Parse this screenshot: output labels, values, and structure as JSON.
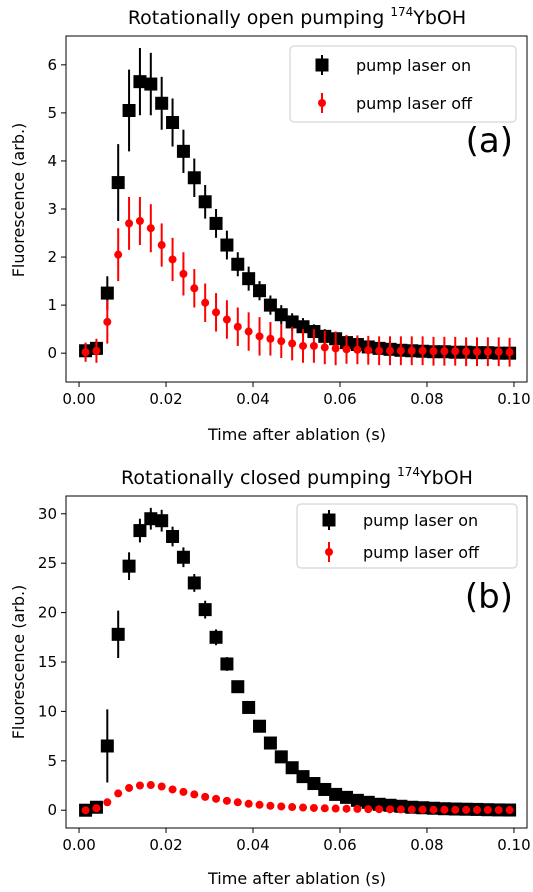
{
  "chart_data": [
    {
      "type": "scatter",
      "title": "Rotationally open pumping ",
      "title_sup": "174",
      "title_suffix": "YbOH",
      "xlabel": "Time after ablation (s)",
      "ylabel": "Fluorescence (arb.)",
      "panel_label": "(a)",
      "xlim": [
        -0.003,
        0.103
      ],
      "ylim": [
        -0.6,
        6.6
      ],
      "xticks": [
        "0.00",
        "0.02",
        "0.04",
        "0.06",
        "0.08",
        "0.10"
      ],
      "xtick_values": [
        0,
        0.02,
        0.04,
        0.06,
        0.08,
        0.1
      ],
      "yticks": [
        "0",
        "1",
        "2",
        "3",
        "4",
        "5",
        "6"
      ],
      "ytick_values": [
        0,
        1,
        2,
        3,
        4,
        5,
        6
      ],
      "legend_position": "top-right",
      "grid": false,
      "series": [
        {
          "name": "pump laser on",
          "color": "#000000",
          "marker": "square",
          "x": [
            0.0015,
            0.004,
            0.0065,
            0.009,
            0.0115,
            0.014,
            0.0165,
            0.019,
            0.0215,
            0.024,
            0.0265,
            0.029,
            0.0315,
            0.034,
            0.0365,
            0.039,
            0.0415,
            0.044,
            0.0465,
            0.049,
            0.0515,
            0.054,
            0.0565,
            0.059,
            0.0615,
            0.064,
            0.0665,
            0.069,
            0.0715,
            0.074,
            0.0765,
            0.079,
            0.0815,
            0.084,
            0.0865,
            0.089,
            0.0915,
            0.094,
            0.0965,
            0.099
          ],
          "y": [
            0.05,
            0.1,
            1.25,
            3.55,
            5.05,
            5.65,
            5.6,
            5.2,
            4.8,
            4.2,
            3.65,
            3.15,
            2.7,
            2.25,
            1.85,
            1.55,
            1.3,
            1.0,
            0.8,
            0.65,
            0.55,
            0.45,
            0.35,
            0.3,
            0.22,
            0.18,
            0.13,
            0.1,
            0.08,
            0.06,
            0.05,
            0.04,
            0.03,
            0.03,
            0.02,
            0.02,
            0.01,
            0.01,
            0.0,
            0.0
          ],
          "err": [
            0.15,
            0.15,
            0.35,
            0.8,
            0.85,
            0.7,
            0.65,
            0.55,
            0.5,
            0.45,
            0.4,
            0.35,
            0.3,
            0.3,
            0.25,
            0.25,
            0.2,
            0.2,
            0.2,
            0.18,
            0.18,
            0.15,
            0.15,
            0.15,
            0.15,
            0.15,
            0.12,
            0.12,
            0.12,
            0.12,
            0.12,
            0.12,
            0.12,
            0.12,
            0.12,
            0.12,
            0.12,
            0.1,
            0.1,
            0.1
          ]
        },
        {
          "name": "pump laser off",
          "color": "#ff0000",
          "marker": "circle",
          "x": [
            0.0015,
            0.004,
            0.0065,
            0.009,
            0.0115,
            0.014,
            0.0165,
            0.019,
            0.0215,
            0.024,
            0.0265,
            0.029,
            0.0315,
            0.034,
            0.0365,
            0.039,
            0.0415,
            0.044,
            0.0465,
            0.049,
            0.0515,
            0.054,
            0.0565,
            0.059,
            0.0615,
            0.064,
            0.0665,
            0.069,
            0.0715,
            0.074,
            0.0765,
            0.079,
            0.0815,
            0.084,
            0.0865,
            0.089,
            0.0915,
            0.094,
            0.0965,
            0.099
          ],
          "y": [
            0.02,
            0.05,
            0.65,
            2.05,
            2.7,
            2.75,
            2.6,
            2.25,
            1.95,
            1.65,
            1.35,
            1.05,
            0.85,
            0.7,
            0.55,
            0.45,
            0.35,
            0.3,
            0.25,
            0.2,
            0.15,
            0.15,
            0.12,
            0.1,
            0.08,
            0.07,
            0.06,
            0.05,
            0.05,
            0.05,
            0.05,
            0.05,
            0.04,
            0.04,
            0.04,
            0.03,
            0.03,
            0.03,
            0.03,
            0.02
          ],
          "err": [
            0.2,
            0.25,
            0.45,
            0.55,
            0.55,
            0.5,
            0.5,
            0.45,
            0.45,
            0.45,
            0.4,
            0.4,
            0.4,
            0.4,
            0.4,
            0.4,
            0.4,
            0.35,
            0.35,
            0.35,
            0.35,
            0.35,
            0.35,
            0.35,
            0.3,
            0.3,
            0.3,
            0.3,
            0.3,
            0.3,
            0.3,
            0.3,
            0.3,
            0.3,
            0.3,
            0.3,
            0.3,
            0.3,
            0.3,
            0.3
          ]
        }
      ]
    },
    {
      "type": "scatter",
      "title": "Rotationally closed pumping ",
      "title_sup": "174",
      "title_suffix": "YbOH",
      "xlabel": "Time after ablation (s)",
      "ylabel": "Fluorescence (arb.)",
      "panel_label": "(b)",
      "xlim": [
        -0.003,
        0.103
      ],
      "ylim": [
        -1.8,
        31.8
      ],
      "xticks": [
        "0.00",
        "0.02",
        "0.04",
        "0.06",
        "0.08",
        "0.10"
      ],
      "xtick_values": [
        0,
        0.02,
        0.04,
        0.06,
        0.08,
        0.1
      ],
      "yticks": [
        "0",
        "5",
        "10",
        "15",
        "20",
        "25",
        "30"
      ],
      "ytick_values": [
        0,
        5,
        10,
        15,
        20,
        25,
        30
      ],
      "legend_position": "top-right",
      "grid": false,
      "series": [
        {
          "name": "pump laser on",
          "color": "#000000",
          "marker": "square",
          "x": [
            0.0015,
            0.004,
            0.0065,
            0.009,
            0.0115,
            0.014,
            0.0165,
            0.019,
            0.0215,
            0.024,
            0.0265,
            0.029,
            0.0315,
            0.034,
            0.0365,
            0.039,
            0.0415,
            0.044,
            0.0465,
            0.049,
            0.0515,
            0.054,
            0.0565,
            0.059,
            0.0615,
            0.064,
            0.0665,
            0.069,
            0.0715,
            0.074,
            0.0765,
            0.079,
            0.0815,
            0.084,
            0.0865,
            0.089,
            0.0915,
            0.094,
            0.0965,
            0.099
          ],
          "y": [
            0.0,
            0.3,
            6.5,
            17.8,
            24.7,
            28.3,
            29.5,
            29.3,
            27.7,
            25.6,
            23.0,
            20.3,
            17.5,
            14.8,
            12.5,
            10.4,
            8.5,
            6.8,
            5.4,
            4.3,
            3.4,
            2.7,
            2.1,
            1.6,
            1.3,
            1.0,
            0.8,
            0.6,
            0.5,
            0.4,
            0.3,
            0.25,
            0.2,
            0.15,
            0.12,
            0.1,
            0.08,
            0.05,
            0.03,
            0.02
          ],
          "err": [
            0.5,
            0.6,
            3.7,
            2.4,
            1.4,
            1.2,
            1.1,
            1.1,
            1.0,
            1.0,
            0.9,
            0.9,
            0.8,
            0.7,
            0.6,
            0.5,
            0.5,
            0.4,
            0.4,
            0.4,
            0.3,
            0.3,
            0.3,
            0.3,
            0.3,
            0.3,
            0.3,
            0.3,
            0.3,
            0.3,
            0.3,
            0.3,
            0.3,
            0.3,
            0.3,
            0.3,
            0.3,
            0.3,
            0.3,
            0.3
          ]
        },
        {
          "name": "pump laser off",
          "color": "#ff0000",
          "marker": "circle",
          "x": [
            0.0015,
            0.004,
            0.0065,
            0.009,
            0.0115,
            0.014,
            0.0165,
            0.019,
            0.0215,
            0.024,
            0.0265,
            0.029,
            0.0315,
            0.034,
            0.0365,
            0.039,
            0.0415,
            0.044,
            0.0465,
            0.049,
            0.0515,
            0.054,
            0.0565,
            0.059,
            0.0615,
            0.064,
            0.0665,
            0.069,
            0.0715,
            0.074,
            0.0765,
            0.079,
            0.0815,
            0.084,
            0.0865,
            0.089,
            0.0915,
            0.094,
            0.0965,
            0.099
          ],
          "y": [
            0.0,
            0.2,
            0.8,
            1.7,
            2.25,
            2.5,
            2.55,
            2.4,
            2.1,
            1.85,
            1.6,
            1.35,
            1.15,
            0.95,
            0.8,
            0.65,
            0.55,
            0.45,
            0.38,
            0.32,
            0.27,
            0.23,
            0.2,
            0.17,
            0.15,
            0.13,
            0.11,
            0.1,
            0.09,
            0.08,
            0.07,
            0.06,
            0.05,
            0.05,
            0.04,
            0.04,
            0.03,
            0.03,
            0.02,
            0.02
          ],
          "err": [
            0.1,
            0.1,
            0.15,
            0.2,
            0.2,
            0.2,
            0.2,
            0.2,
            0.2,
            0.15,
            0.15,
            0.15,
            0.15,
            0.12,
            0.12,
            0.1,
            0.1,
            0.1,
            0.1,
            0.1,
            0.1,
            0.1,
            0.1,
            0.1,
            0.1,
            0.1,
            0.1,
            0.1,
            0.1,
            0.1,
            0.1,
            0.1,
            0.1,
            0.1,
            0.1,
            0.1,
            0.1,
            0.1,
            0.1,
            0.1
          ]
        }
      ]
    }
  ]
}
